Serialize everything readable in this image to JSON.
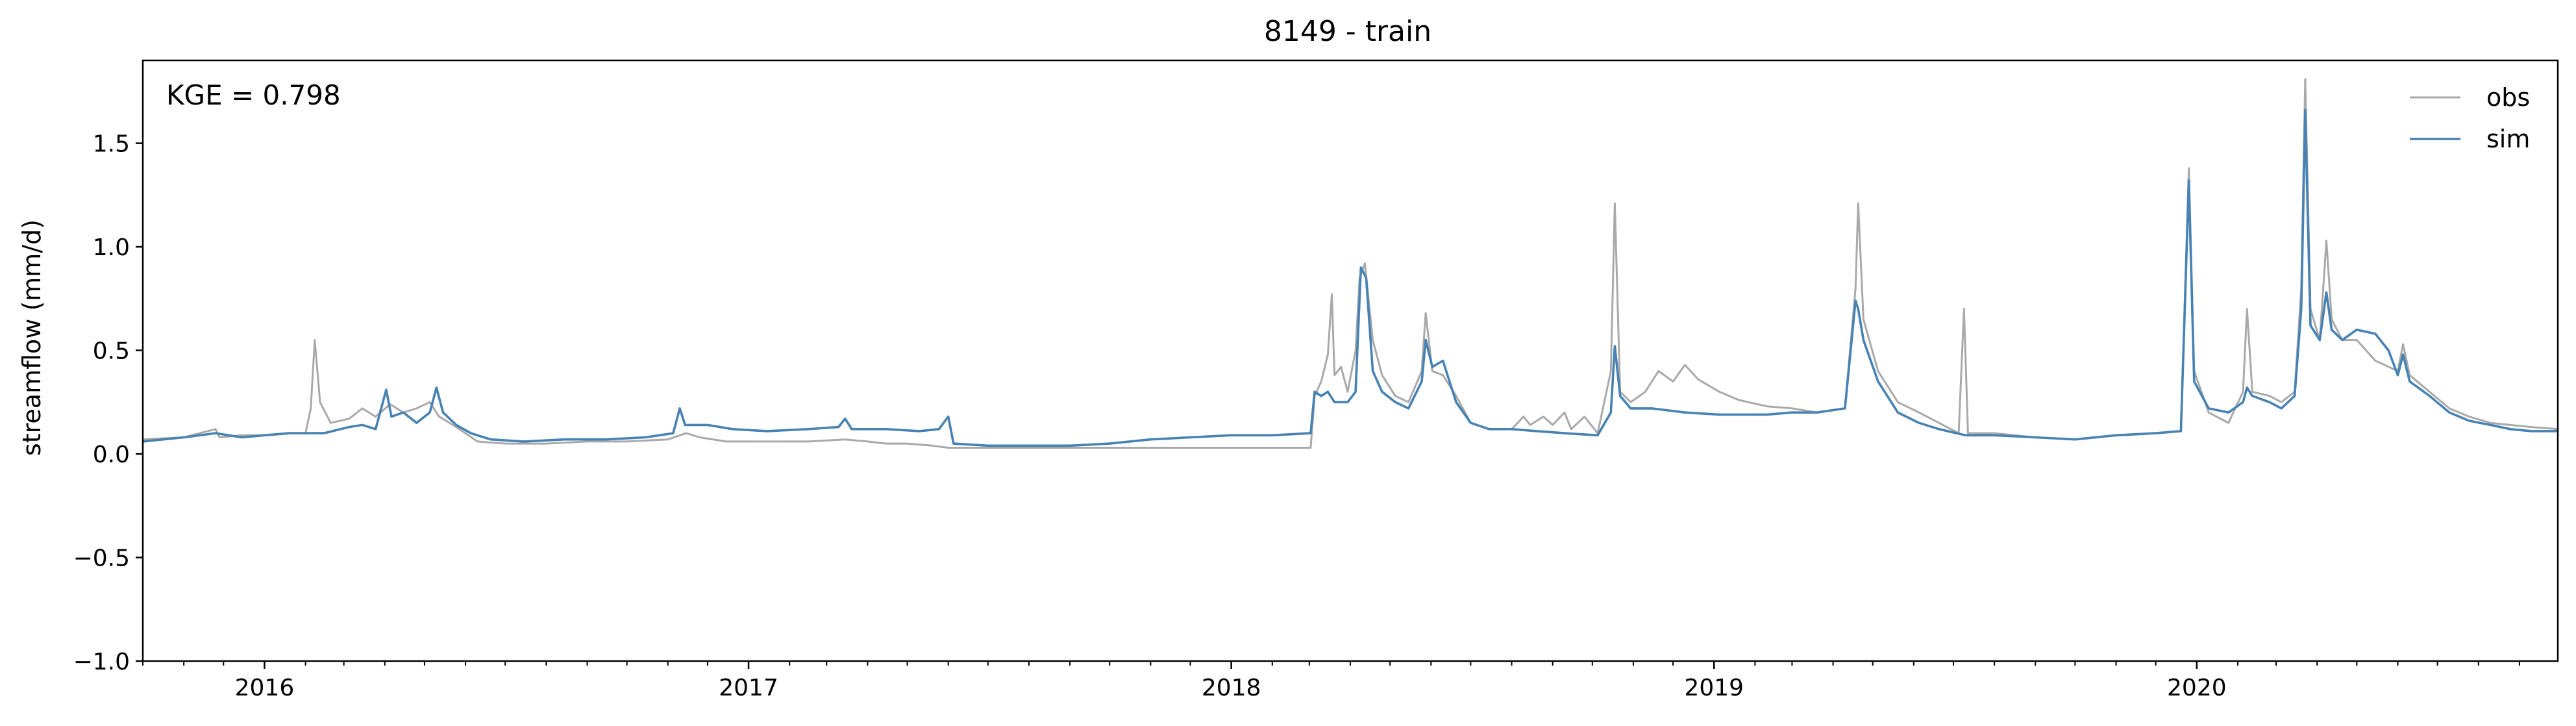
{
  "chart_data": {
    "type": "line",
    "title": "8149 - train",
    "xlabel": "",
    "ylabel": "streamflow (mm/d)",
    "annotation": "KGE = 0.798",
    "xlim": [
      "2015-10-01",
      "2020-09-30"
    ],
    "ylim": [
      -1.0,
      1.9
    ],
    "y_ticks": [
      -1.0,
      -0.5,
      0.0,
      0.5,
      1.0,
      1.5
    ],
    "y_tick_labels": [
      "−1.0",
      "−0.5",
      "0.0",
      "0.5",
      "1.0",
      "1.5"
    ],
    "x_ticks": [
      "2016-01-01",
      "2017-01-01",
      "2018-01-01",
      "2019-01-01",
      "2020-01-01"
    ],
    "x_tick_labels": [
      "2016",
      "2017",
      "2018",
      "2019",
      "2020"
    ],
    "grid": false,
    "legend_position": "top-right",
    "series": [
      {
        "name": "obs",
        "color": "#a9a9a9",
        "points": [
          [
            "2015-10-01",
            0.07
          ],
          [
            "2015-11-01",
            0.08
          ],
          [
            "2015-11-25",
            0.12
          ],
          [
            "2015-11-28",
            0.08
          ],
          [
            "2015-12-15",
            0.09
          ],
          [
            "2016-01-01",
            0.09
          ],
          [
            "2016-01-20",
            0.1
          ],
          [
            "2016-02-01",
            0.1
          ],
          [
            "2016-02-05",
            0.22
          ],
          [
            "2016-02-08",
            0.55
          ],
          [
            "2016-02-12",
            0.25
          ],
          [
            "2016-02-20",
            0.15
          ],
          [
            "2016-03-05",
            0.17
          ],
          [
            "2016-03-15",
            0.22
          ],
          [
            "2016-03-25",
            0.18
          ],
          [
            "2016-04-05",
            0.24
          ],
          [
            "2016-04-15",
            0.2
          ],
          [
            "2016-04-25",
            0.22
          ],
          [
            "2016-05-05",
            0.25
          ],
          [
            "2016-05-12",
            0.18
          ],
          [
            "2016-05-20",
            0.15
          ],
          [
            "2016-06-01",
            0.1
          ],
          [
            "2016-06-10",
            0.06
          ],
          [
            "2016-07-01",
            0.05
          ],
          [
            "2016-08-01",
            0.05
          ],
          [
            "2016-09-01",
            0.06
          ],
          [
            "2016-10-01",
            0.06
          ],
          [
            "2016-11-01",
            0.07
          ],
          [
            "2016-11-15",
            0.1
          ],
          [
            "2016-11-25",
            0.08
          ],
          [
            "2016-12-15",
            0.06
          ],
          [
            "2017-01-15",
            0.06
          ],
          [
            "2017-02-15",
            0.06
          ],
          [
            "2017-03-15",
            0.07
          ],
          [
            "2017-04-01",
            0.06
          ],
          [
            "2017-04-15",
            0.05
          ],
          [
            "2017-05-01",
            0.05
          ],
          [
            "2017-05-20",
            0.04
          ],
          [
            "2017-06-01",
            0.03
          ],
          [
            "2017-07-01",
            0.03
          ],
          [
            "2017-08-01",
            0.03
          ],
          [
            "2017-09-01",
            0.03
          ],
          [
            "2017-10-01",
            0.03
          ],
          [
            "2017-11-01",
            0.03
          ],
          [
            "2017-12-01",
            0.03
          ],
          [
            "2018-01-01",
            0.03
          ],
          [
            "2018-02-01",
            0.03
          ],
          [
            "2018-03-02",
            0.03
          ],
          [
            "2018-03-05",
            0.28
          ],
          [
            "2018-03-10",
            0.35
          ],
          [
            "2018-03-15",
            0.48
          ],
          [
            "2018-03-18",
            0.77
          ],
          [
            "2018-03-20",
            0.38
          ],
          [
            "2018-03-25",
            0.42
          ],
          [
            "2018-03-30",
            0.3
          ],
          [
            "2018-04-05",
            0.5
          ],
          [
            "2018-04-08",
            0.85
          ],
          [
            "2018-04-12",
            0.92
          ],
          [
            "2018-04-18",
            0.55
          ],
          [
            "2018-04-25",
            0.38
          ],
          [
            "2018-05-05",
            0.28
          ],
          [
            "2018-05-15",
            0.25
          ],
          [
            "2018-05-25",
            0.4
          ],
          [
            "2018-05-28",
            0.68
          ],
          [
            "2018-06-02",
            0.4
          ],
          [
            "2018-06-10",
            0.38
          ],
          [
            "2018-06-20",
            0.28
          ],
          [
            "2018-07-01",
            0.15
          ],
          [
            "2018-07-15",
            0.12
          ],
          [
            "2018-08-01",
            0.12
          ],
          [
            "2018-08-10",
            0.18
          ],
          [
            "2018-08-15",
            0.14
          ],
          [
            "2018-08-25",
            0.18
          ],
          [
            "2018-09-01",
            0.14
          ],
          [
            "2018-09-10",
            0.2
          ],
          [
            "2018-09-15",
            0.12
          ],
          [
            "2018-09-25",
            0.18
          ],
          [
            "2018-10-05",
            0.1
          ],
          [
            "2018-10-15",
            0.4
          ],
          [
            "2018-10-18",
            1.21
          ],
          [
            "2018-10-22",
            0.3
          ],
          [
            "2018-10-30",
            0.25
          ],
          [
            "2018-11-10",
            0.3
          ],
          [
            "2018-11-20",
            0.4
          ],
          [
            "2018-12-01",
            0.35
          ],
          [
            "2018-12-10",
            0.43
          ],
          [
            "2018-12-20",
            0.36
          ],
          [
            "2019-01-05",
            0.3
          ],
          [
            "2019-01-20",
            0.26
          ],
          [
            "2019-02-10",
            0.23
          ],
          [
            "2019-03-01",
            0.22
          ],
          [
            "2019-03-20",
            0.2
          ],
          [
            "2019-04-10",
            0.22
          ],
          [
            "2019-04-18",
            0.8
          ],
          [
            "2019-04-20",
            1.21
          ],
          [
            "2019-04-24",
            0.65
          ],
          [
            "2019-05-05",
            0.4
          ],
          [
            "2019-05-20",
            0.25
          ],
          [
            "2019-06-05",
            0.2
          ],
          [
            "2019-06-20",
            0.15
          ],
          [
            "2019-07-05",
            0.1
          ],
          [
            "2019-07-09",
            0.7
          ],
          [
            "2019-07-12",
            0.1
          ],
          [
            "2019-08-01",
            0.1
          ],
          [
            "2019-09-01",
            0.08
          ],
          [
            "2019-10-01",
            0.07
          ],
          [
            "2019-11-01",
            0.09
          ],
          [
            "2019-12-01",
            0.1
          ],
          [
            "2019-12-20",
            0.11
          ],
          [
            "2019-12-26",
            1.38
          ],
          [
            "2019-12-30",
            0.4
          ],
          [
            "2020-01-10",
            0.2
          ],
          [
            "2020-01-25",
            0.15
          ],
          [
            "2020-02-05",
            0.3
          ],
          [
            "2020-02-08",
            0.7
          ],
          [
            "2020-02-12",
            0.3
          ],
          [
            "2020-02-25",
            0.28
          ],
          [
            "2020-03-05",
            0.25
          ],
          [
            "2020-03-15",
            0.3
          ],
          [
            "2020-03-20",
            0.8
          ],
          [
            "2020-03-23",
            1.81
          ],
          [
            "2020-03-27",
            0.7
          ],
          [
            "2020-04-03",
            0.55
          ],
          [
            "2020-04-08",
            1.03
          ],
          [
            "2020-04-12",
            0.65
          ],
          [
            "2020-04-20",
            0.55
          ],
          [
            "2020-05-01",
            0.55
          ],
          [
            "2020-05-15",
            0.45
          ],
          [
            "2020-06-01",
            0.4
          ],
          [
            "2020-06-05",
            0.53
          ],
          [
            "2020-06-10",
            0.38
          ],
          [
            "2020-06-25",
            0.3
          ],
          [
            "2020-07-10",
            0.22
          ],
          [
            "2020-07-25",
            0.18
          ],
          [
            "2020-08-10",
            0.15
          ],
          [
            "2020-08-25",
            0.14
          ],
          [
            "2020-09-10",
            0.13
          ],
          [
            "2020-09-30",
            0.12
          ]
        ]
      },
      {
        "name": "sim",
        "color": "#4682b4",
        "points": [
          [
            "2015-10-01",
            0.06
          ],
          [
            "2015-11-01",
            0.08
          ],
          [
            "2015-11-25",
            0.1
          ],
          [
            "2015-12-15",
            0.08
          ],
          [
            "2016-01-01",
            0.09
          ],
          [
            "2016-01-20",
            0.1
          ],
          [
            "2016-02-01",
            0.1
          ],
          [
            "2016-02-15",
            0.1
          ],
          [
            "2016-03-05",
            0.13
          ],
          [
            "2016-03-15",
            0.14
          ],
          [
            "2016-03-25",
            0.12
          ],
          [
            "2016-04-02",
            0.31
          ],
          [
            "2016-04-06",
            0.18
          ],
          [
            "2016-04-15",
            0.2
          ],
          [
            "2016-04-25",
            0.15
          ],
          [
            "2016-05-05",
            0.2
          ],
          [
            "2016-05-10",
            0.32
          ],
          [
            "2016-05-15",
            0.2
          ],
          [
            "2016-05-25",
            0.14
          ],
          [
            "2016-06-05",
            0.1
          ],
          [
            "2016-06-20",
            0.07
          ],
          [
            "2016-07-15",
            0.06
          ],
          [
            "2016-08-15",
            0.07
          ],
          [
            "2016-09-15",
            0.07
          ],
          [
            "2016-10-15",
            0.08
          ],
          [
            "2016-11-05",
            0.1
          ],
          [
            "2016-11-10",
            0.22
          ],
          [
            "2016-11-14",
            0.14
          ],
          [
            "2016-12-01",
            0.14
          ],
          [
            "2016-12-20",
            0.12
          ],
          [
            "2017-01-15",
            0.11
          ],
          [
            "2017-02-15",
            0.12
          ],
          [
            "2017-03-10",
            0.13
          ],
          [
            "2017-03-15",
            0.17
          ],
          [
            "2017-03-20",
            0.12
          ],
          [
            "2017-04-15",
            0.12
          ],
          [
            "2017-05-10",
            0.11
          ],
          [
            "2017-05-25",
            0.12
          ],
          [
            "2017-06-01",
            0.18
          ],
          [
            "2017-06-05",
            0.05
          ],
          [
            "2017-07-01",
            0.04
          ],
          [
            "2017-08-01",
            0.04
          ],
          [
            "2017-09-01",
            0.04
          ],
          [
            "2017-10-01",
            0.05
          ],
          [
            "2017-11-01",
            0.07
          ],
          [
            "2017-12-01",
            0.08
          ],
          [
            "2018-01-01",
            0.09
          ],
          [
            "2018-02-01",
            0.09
          ],
          [
            "2018-03-02",
            0.1
          ],
          [
            "2018-03-05",
            0.3
          ],
          [
            "2018-03-10",
            0.28
          ],
          [
            "2018-03-15",
            0.3
          ],
          [
            "2018-03-20",
            0.25
          ],
          [
            "2018-03-30",
            0.25
          ],
          [
            "2018-04-05",
            0.3
          ],
          [
            "2018-04-09",
            0.9
          ],
          [
            "2018-04-13",
            0.85
          ],
          [
            "2018-04-18",
            0.4
          ],
          [
            "2018-04-25",
            0.3
          ],
          [
            "2018-05-05",
            0.25
          ],
          [
            "2018-05-15",
            0.22
          ],
          [
            "2018-05-25",
            0.35
          ],
          [
            "2018-05-28",
            0.55
          ],
          [
            "2018-06-02",
            0.42
          ],
          [
            "2018-06-10",
            0.45
          ],
          [
            "2018-06-20",
            0.25
          ],
          [
            "2018-07-01",
            0.15
          ],
          [
            "2018-07-15",
            0.12
          ],
          [
            "2018-08-01",
            0.12
          ],
          [
            "2018-08-20",
            0.11
          ],
          [
            "2018-09-10",
            0.1
          ],
          [
            "2018-10-05",
            0.09
          ],
          [
            "2018-10-15",
            0.2
          ],
          [
            "2018-10-18",
            0.52
          ],
          [
            "2018-10-22",
            0.28
          ],
          [
            "2018-10-30",
            0.22
          ],
          [
            "2018-11-15",
            0.22
          ],
          [
            "2018-12-10",
            0.2
          ],
          [
            "2019-01-05",
            0.19
          ],
          [
            "2019-02-10",
            0.19
          ],
          [
            "2019-03-01",
            0.2
          ],
          [
            "2019-03-20",
            0.2
          ],
          [
            "2019-04-10",
            0.22
          ],
          [
            "2019-04-18",
            0.74
          ],
          [
            "2019-04-20",
            0.7
          ],
          [
            "2019-04-24",
            0.55
          ],
          [
            "2019-05-05",
            0.35
          ],
          [
            "2019-05-20",
            0.2
          ],
          [
            "2019-06-05",
            0.15
          ],
          [
            "2019-06-20",
            0.12
          ],
          [
            "2019-07-10",
            0.09
          ],
          [
            "2019-08-01",
            0.09
          ],
          [
            "2019-09-01",
            0.08
          ],
          [
            "2019-10-01",
            0.07
          ],
          [
            "2019-11-01",
            0.09
          ],
          [
            "2019-12-01",
            0.1
          ],
          [
            "2019-12-20",
            0.11
          ],
          [
            "2019-12-26",
            1.32
          ],
          [
            "2019-12-30",
            0.35
          ],
          [
            "2020-01-10",
            0.22
          ],
          [
            "2020-01-25",
            0.2
          ],
          [
            "2020-02-05",
            0.25
          ],
          [
            "2020-02-08",
            0.32
          ],
          [
            "2020-02-12",
            0.28
          ],
          [
            "2020-02-25",
            0.25
          ],
          [
            "2020-03-05",
            0.22
          ],
          [
            "2020-03-15",
            0.28
          ],
          [
            "2020-03-20",
            0.7
          ],
          [
            "2020-03-23",
            1.66
          ],
          [
            "2020-03-27",
            0.62
          ],
          [
            "2020-04-03",
            0.55
          ],
          [
            "2020-04-08",
            0.78
          ],
          [
            "2020-04-12",
            0.6
          ],
          [
            "2020-04-20",
            0.55
          ],
          [
            "2020-05-01",
            0.6
          ],
          [
            "2020-05-15",
            0.58
          ],
          [
            "2020-05-25",
            0.5
          ],
          [
            "2020-06-01",
            0.38
          ],
          [
            "2020-06-05",
            0.48
          ],
          [
            "2020-06-10",
            0.35
          ],
          [
            "2020-06-25",
            0.28
          ],
          [
            "2020-07-10",
            0.2
          ],
          [
            "2020-07-25",
            0.16
          ],
          [
            "2020-08-10",
            0.14
          ],
          [
            "2020-08-25",
            0.12
          ],
          [
            "2020-09-10",
            0.11
          ],
          [
            "2020-09-30",
            0.11
          ]
        ]
      }
    ]
  }
}
